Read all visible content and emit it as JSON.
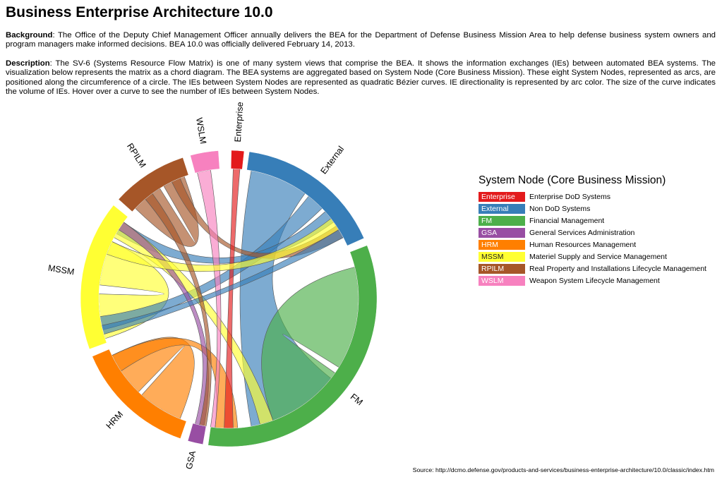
{
  "header": {
    "title": "Business Enterprise Architecture 10.0",
    "background_label": "Background",
    "background_text": ": The Office of the Deputy Chief Management Officer annually delivers the BEA for the Department of Defense Business Mission Area to help defense business system owners and program managers make informed decisions. BEA 10.0 was officially delivered February 14, 2013.",
    "description_label": "Description",
    "description_text": ": The SV-6 (Systems Resource Flow Matrix) is one of many system views that comprise the BEA. It shows the information exchanges (IEs) between automated BEA systems. The visualization below represents the matrix as a chord diagram. The BEA systems are aggregated based on System Node (Core Business Mission). These eight System Nodes, represented as arcs, are positioned along the circumference of a circle. The IEs between System Nodes are represented as quadratic Bézier curves. IE directionality is represented by arc color. The size of the curve indicates the volume of IEs. Hover over a curve to see the number of IEs between System Nodes."
  },
  "legend": {
    "title": "System Node (Core Business Mission)",
    "items": [
      {
        "code": "Enterprise",
        "name": "Enterprise DoD Systems",
        "color": "#e31a1c"
      },
      {
        "code": "External",
        "name": "Non DoD Systems",
        "color": "#377eb8"
      },
      {
        "code": "FM",
        "name": "Financial Management",
        "color": "#4daf4a"
      },
      {
        "code": "GSA",
        "name": "General Services Administration",
        "color": "#984ea3"
      },
      {
        "code": "HRM",
        "name": "Human Resources Management",
        "color": "#ff7f00"
      },
      {
        "code": "MSSM",
        "name": "Materiel Supply and Service Management",
        "color": "#ffff33"
      },
      {
        "code": "RPILM",
        "name": "Real Property and Installations Lifecycle Management",
        "color": "#a65628"
      },
      {
        "code": "WSLM",
        "name": "Weapon System Lifecycle Management",
        "color": "#f781bf"
      }
    ]
  },
  "chord": {
    "groups": [
      {
        "code": "Enterprise",
        "color": "#e31a1c",
        "start": 1,
        "end": 6
      },
      {
        "code": "External",
        "color": "#377eb8",
        "start": 8,
        "end": 66
      },
      {
        "code": "FM",
        "color": "#4daf4a",
        "start": 69,
        "end": 188
      },
      {
        "code": "GSA",
        "color": "#984ea3",
        "start": 190,
        "end": 196
      },
      {
        "code": "HRM",
        "color": "#ff7f00",
        "start": 199,
        "end": 247
      },
      {
        "code": "MSSM",
        "color": "#ffff33",
        "start": 250,
        "end": 309
      },
      {
        "code": "RPILM",
        "color": "#a65628",
        "start": 312,
        "end": 342
      },
      {
        "code": "WSLM",
        "color": "#f781bf",
        "start": 345,
        "end": 356
      }
    ],
    "ribbons": [
      {
        "color": "#377eb8",
        "a": [
          10,
          36
        ],
        "b": [
          128,
          170
        ]
      },
      {
        "color": "#4daf4a",
        "a": [
          76,
          122
        ],
        "b": [
          125,
          160
        ]
      },
      {
        "color": "#ff7f00",
        "a": [
          202,
          222
        ],
        "b": [
          224,
          244
        ]
      },
      {
        "color": "#ffff33",
        "a": [
          252,
          272
        ],
        "b": [
          276,
          296
        ]
      },
      {
        "color": "#a65628",
        "a": [
          314,
          328
        ],
        "b": [
          330,
          340
        ]
      },
      {
        "color": "#377eb8",
        "a": [
          38,
          46
        ],
        "b": [
          256,
          262
        ]
      },
      {
        "color": "#377eb8",
        "a": [
          48,
          54
        ],
        "b": [
          300,
          306
        ]
      },
      {
        "color": "#ffff33",
        "a": [
          298,
          306
        ],
        "b": [
          160,
          166
        ]
      },
      {
        "color": "#ff7f00",
        "a": [
          236,
          244
        ],
        "b": [
          176,
          186
        ]
      },
      {
        "color": "#a65628",
        "a": [
          334,
          338
        ],
        "b": [
          56,
          62
        ]
      },
      {
        "color": "#f781bf",
        "a": [
          346,
          352
        ],
        "b": [
          186,
          188
        ]
      },
      {
        "color": "#e31a1c",
        "a": [
          2,
          5
        ],
        "b": [
          178,
          182
        ]
      },
      {
        "color": "#984ea3",
        "a": [
          191,
          195
        ],
        "b": [
          302,
          306
        ]
      },
      {
        "color": "#ffff33",
        "a": [
          290,
          296
        ],
        "b": [
          52,
          58
        ]
      },
      {
        "color": "#377eb8",
        "a": [
          58,
          62
        ],
        "b": [
          254,
          258
        ]
      },
      {
        "color": "#a65628",
        "a": [
          320,
          324
        ],
        "b": [
          190,
          193
        ]
      }
    ]
  },
  "footer": {
    "source": "Source: http://dcmo.defense.gov/products-and-services/business-enterprise-architecture/10.0/classic/index.htm"
  }
}
